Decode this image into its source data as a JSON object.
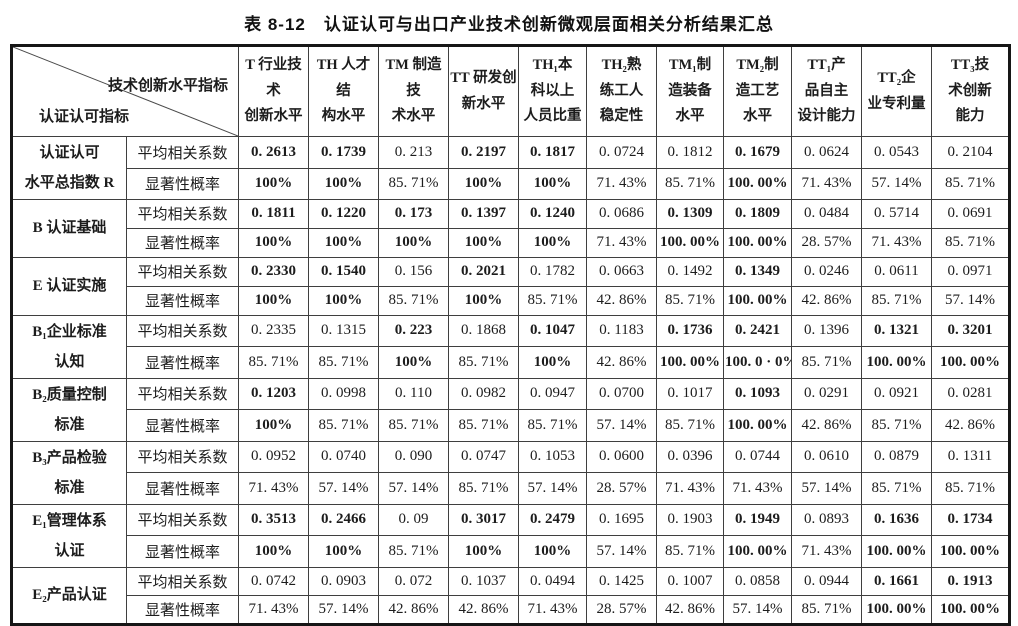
{
  "title": "表 8-12　认证认可与出口产业技术创新微观层面相关分析结果汇总",
  "table": {
    "corner": {
      "top_right": "技术创新水平指标",
      "bottom_left": "认证认可指标"
    },
    "columns": [
      "T 行业技术\n创新水平",
      "TH 人才结\n构水平",
      "TM 制造技\n术水平",
      "TT 研发创\n新水平",
      "TH₁本\n科以上\n人员比重",
      "TH₂熟\n练工人\n稳定性",
      "TM₁制\n造装备\n水平",
      "TM₂制\n造工艺\n水平",
      "TT₁产\n品自主\n设计能力",
      "TT₂企\n业专利量",
      "TT₃技\n术创新\n能力"
    ],
    "metrics": {
      "avg": "平均相关系数",
      "sig": "显著性概率"
    },
    "groups": [
      {
        "label": "认证认可\n水平总指数 R",
        "avg": [
          "0. 2613",
          "0. 1739",
          "0. 213",
          "0. 2197",
          "0. 1817",
          "0. 0724",
          "0. 1812",
          "0. 1679",
          "0. 0624",
          "0. 0543",
          "0. 2104"
        ],
        "sig": [
          "100%",
          "100%",
          "85. 71%",
          "100%",
          "100%",
          "71. 43%",
          "85. 71%",
          "100. 00%",
          "71. 43%",
          "57. 14%",
          "85. 71%"
        ]
      },
      {
        "label": "B 认证基础",
        "avg": [
          "0. 1811",
          "0. 1220",
          "0. 173",
          "0. 1397",
          "0. 1240",
          "0. 0686",
          "0. 1309",
          "0. 1809",
          "0. 0484",
          "0. 5714",
          "0. 0691"
        ],
        "sig": [
          "100%",
          "100%",
          "100%",
          "100%",
          "100%",
          "71. 43%",
          "100. 00%",
          "100. 00%",
          "28. 57%",
          "71. 43%",
          "85. 71%"
        ]
      },
      {
        "label": "E 认证实施",
        "avg": [
          "0. 2330",
          "0. 1540",
          "0. 156",
          "0. 2021",
          "0. 1782",
          "0. 0663",
          "0. 1492",
          "0. 1349",
          "0. 0246",
          "0. 0611",
          "0. 0971"
        ],
        "sig": [
          "100%",
          "100%",
          "85. 71%",
          "100%",
          "85. 71%",
          "42. 86%",
          "85. 71%",
          "100. 00%",
          "42. 86%",
          "85. 71%",
          "57. 14%"
        ]
      },
      {
        "label": "B₁企业标准\n认知",
        "avg": [
          "0. 2335",
          "0. 1315",
          "0. 223",
          "0. 1868",
          "0. 1047",
          "0. 1183",
          "0. 1736",
          "0. 2421",
          "0. 1396",
          "0. 1321",
          "0. 3201"
        ],
        "sig": [
          "85. 71%",
          "85. 71%",
          "100%",
          "85. 71%",
          "100%",
          "42. 86%",
          "100. 00%",
          "100. 0 · 0%",
          "85. 71%",
          "100. 00%",
          "100. 00%"
        ]
      },
      {
        "label": "B₂质量控制\n标准",
        "avg": [
          "0. 1203",
          "0. 0998",
          "0. 110",
          "0. 0982",
          "0. 0947",
          "0. 0700",
          "0. 1017",
          "0. 1093",
          "0. 0291",
          "0. 0921",
          "0. 0281"
        ],
        "sig": [
          "100%",
          "85. 71%",
          "85. 71%",
          "85. 71%",
          "85. 71%",
          "57. 14%",
          "85. 71%",
          "100. 00%",
          "42. 86%",
          "85. 71%",
          "42. 86%"
        ]
      },
      {
        "label": "B₃产品检验\n标准",
        "avg": [
          "0. 0952",
          "0. 0740",
          "0. 090",
          "0. 0747",
          "0. 1053",
          "0. 0600",
          "0. 0396",
          "0. 0744",
          "0. 0610",
          "0. 0879",
          "0. 1311"
        ],
        "sig": [
          "71. 43%",
          "57. 14%",
          "57. 14%",
          "85. 71%",
          "57. 14%",
          "28. 57%",
          "71. 43%",
          "71. 43%",
          "57. 14%",
          "85. 71%",
          "85. 71%"
        ]
      },
      {
        "label": "E₁管理体系\n认证",
        "avg": [
          "0. 3513",
          "0. 2466",
          "0. 09",
          "0. 3017",
          "0. 2479",
          "0. 1695",
          "0. 1903",
          "0. 1949",
          "0. 0893",
          "0. 1636",
          "0. 1734"
        ],
        "sig": [
          "100%",
          "100%",
          "85. 71%",
          "100%",
          "100%",
          "57. 14%",
          "85. 71%",
          "100. 00%",
          "71. 43%",
          "100. 00%",
          "100. 00%"
        ]
      },
      {
        "label": "E₂产品认证",
        "avg": [
          "0. 0742",
          "0. 0903",
          "0. 072",
          "0. 1037",
          "0. 0494",
          "0. 1425",
          "0. 1007",
          "0. 0858",
          "0. 0944",
          "0. 1661",
          "0. 1913"
        ],
        "sig": [
          "71. 43%",
          "57. 14%",
          "42. 86%",
          "42. 86%",
          "71. 43%",
          "28. 57%",
          "42. 86%",
          "57. 14%",
          "85. 71%",
          "100. 00%",
          "100. 00%"
        ]
      }
    ]
  }
}
